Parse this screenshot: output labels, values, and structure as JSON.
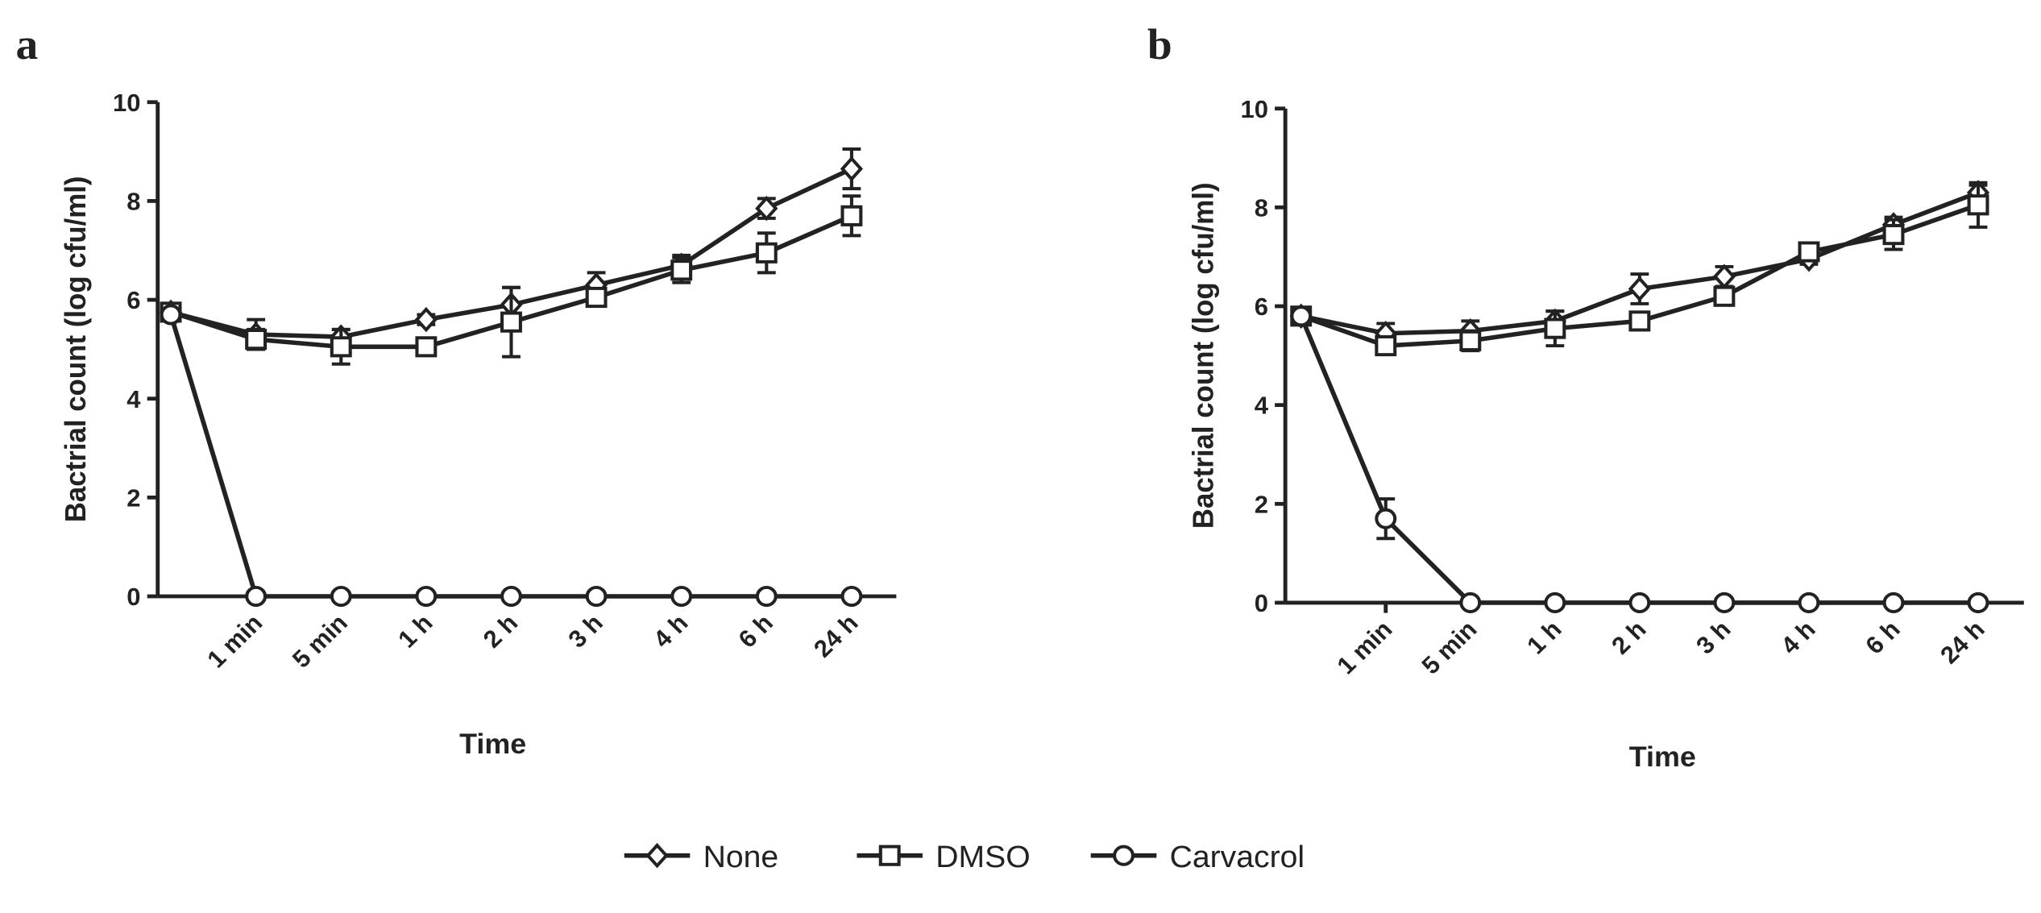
{
  "chart_data": [
    {
      "type": "line",
      "panel_label": "a",
      "x_label": "Time",
      "y_label": "Bactrial count (log cfu/ml)",
      "categories": [
        null,
        "1 min",
        "5 min",
        "1 h",
        "2 h",
        "3 h",
        "4 h",
        "6 h",
        "24 h"
      ],
      "ylim": [
        0,
        10
      ],
      "yticks": [
        0,
        2,
        4,
        6,
        8,
        10
      ],
      "series": [
        {
          "name": "None",
          "marker": "diamond",
          "color": "#222222",
          "values": [
            5.75,
            5.3,
            5.25,
            5.6,
            5.9,
            6.3,
            6.7,
            7.85,
            8.65
          ],
          "errors": [
            0.1,
            0.3,
            0.15,
            0.1,
            0.35,
            0.25,
            0.2,
            0.2,
            0.4
          ]
        },
        {
          "name": "DMSO",
          "marker": "square",
          "color": "#222222",
          "values": [
            5.75,
            5.2,
            5.05,
            5.05,
            5.55,
            6.05,
            6.6,
            6.95,
            7.7
          ],
          "errors": [
            0.1,
            0.2,
            0.35,
            0.1,
            0.7,
            0.15,
            0.25,
            0.4,
            0.4
          ]
        },
        {
          "name": "Carvacrol",
          "marker": "circle",
          "color": "#222222",
          "values": [
            5.7,
            0,
            0,
            0,
            0,
            0,
            0,
            0,
            0
          ],
          "errors": [
            0.1,
            0,
            0,
            0,
            0,
            0,
            0,
            0,
            0
          ]
        }
      ]
    },
    {
      "type": "line",
      "panel_label": "b",
      "x_label": "Time",
      "y_label": "Bactrial count (log cfu/ml)",
      "categories": [
        null,
        "1 min",
        "5 min",
        "1 h",
        "2 h",
        "3 h",
        "4 h",
        "6 h",
        "24 h"
      ],
      "ylim": [
        0,
        10
      ],
      "yticks": [
        0,
        2,
        4,
        6,
        8,
        10
      ],
      "series": [
        {
          "marker": "diamond",
          "color": "#222222",
          "values": [
            5.8,
            5.45,
            5.5,
            5.7,
            6.35,
            6.6,
            6.95,
            7.65,
            8.3
          ],
          "errors": [
            0.1,
            0.2,
            0.2,
            0.2,
            0.3,
            0.2,
            0.1,
            0.15,
            0.15
          ]
        },
        {
          "marker": "square",
          "color": "#222222",
          "values": [
            5.8,
            5.2,
            5.3,
            5.55,
            5.7,
            6.2,
            7.1,
            7.45,
            8.05
          ],
          "errors": [
            0.1,
            0.15,
            0.2,
            0.35,
            0.15,
            0.15,
            0.15,
            0.3,
            0.45
          ]
        },
        {
          "marker": "circle",
          "color": "#222222",
          "values": [
            5.8,
            1.7,
            0,
            0,
            0,
            0,
            0,
            0,
            0
          ],
          "errors": [
            0.1,
            0.4,
            0,
            0,
            0,
            0,
            0,
            0,
            0
          ]
        }
      ]
    }
  ]
}
